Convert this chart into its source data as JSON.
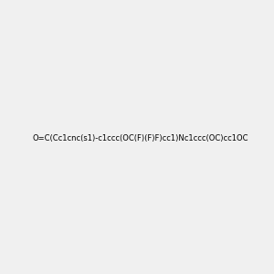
{
  "smiles": "O=C(Cc1cnc(s1)-c1ccc(OC(F)(F)F)cc1)Nc1ccc(OC)cc1OC",
  "title": "",
  "background_color": "#f0f0f0",
  "atom_colors": {
    "N": "#0000ff",
    "O": "#ff0000",
    "S": "#cccc00",
    "F": "#ff00ff",
    "H_label": "#008080"
  },
  "figsize": [
    3.0,
    3.0
  ],
  "dpi": 100
}
